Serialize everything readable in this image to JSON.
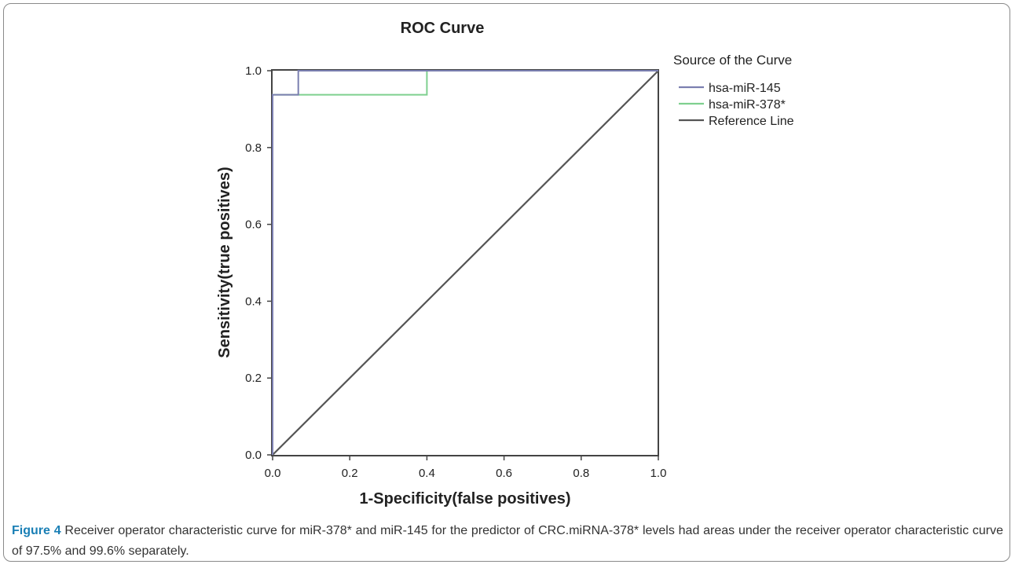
{
  "figure": {
    "label": "Figure 4",
    "caption": "Receiver operator characteristic curve for miR-378* and miR-145 for the predictor of CRC.miRNA-378* levels had areas under the receiver operator characteristic curve of 97.5% and 99.6% separately."
  },
  "chart_data": {
    "type": "line",
    "title": "ROC Curve",
    "xlabel": "1-Specificity(false positives)",
    "ylabel": "Sensitivity(true positives)",
    "xlim": [
      0,
      1
    ],
    "ylim": [
      0,
      1
    ],
    "xticks": [
      "0.0",
      "0.2",
      "0.4",
      "0.6",
      "0.8",
      "1.0"
    ],
    "yticks": [
      "0.0",
      "0.2",
      "0.4",
      "0.6",
      "0.8",
      "1.0"
    ],
    "grid": false,
    "legend": {
      "title": "Source of the Curve",
      "placement": "right"
    },
    "series": [
      {
        "name": "hsa-miR-145",
        "color": "#7b7fb0",
        "x": [
          0,
          0,
          0.0667,
          0.0667,
          1
        ],
        "y": [
          0,
          0.9375,
          0.9375,
          1,
          1
        ]
      },
      {
        "name": "hsa-miR-378*",
        "color": "#7fd08f",
        "x": [
          0,
          0,
          0.4,
          0.4,
          1
        ],
        "y": [
          0,
          0.9375,
          0.9375,
          1,
          1
        ]
      },
      {
        "name": "Reference Line",
        "color": "#555555",
        "x": [
          0,
          1
        ],
        "y": [
          0,
          1
        ]
      }
    ]
  }
}
